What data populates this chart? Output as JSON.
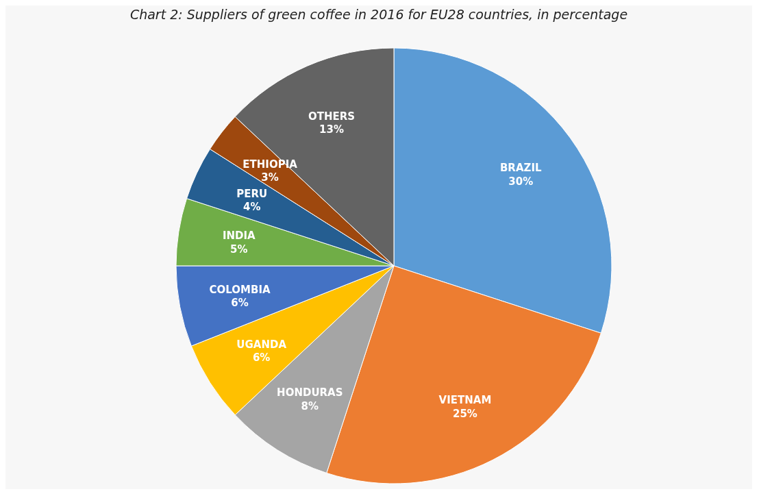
{
  "chart_data": {
    "type": "pie",
    "title": "Chart 2: Suppliers of green coffee in 2016 for EU28 countries, in percentage",
    "categories": [
      "BRAZIL",
      "VIETNAM",
      "HONDURAS",
      "UGANDA",
      "COLOMBIA",
      "INDIA",
      "PERU",
      "ETHIOPIA",
      "OTHERS"
    ],
    "values": [
      30,
      25,
      8,
      6,
      6,
      5,
      4,
      3,
      13
    ],
    "colors": [
      "#5b9bd5",
      "#ed7d31",
      "#a5a5a5",
      "#ffc000",
      "#4472c4",
      "#70ad47",
      "#255e91",
      "#9e480e",
      "#636363"
    ],
    "value_labels": [
      "30%",
      "25%",
      "8%",
      "6%",
      "6%",
      "5%",
      "4%",
      "3%",
      "13%"
    ],
    "legend": false
  }
}
